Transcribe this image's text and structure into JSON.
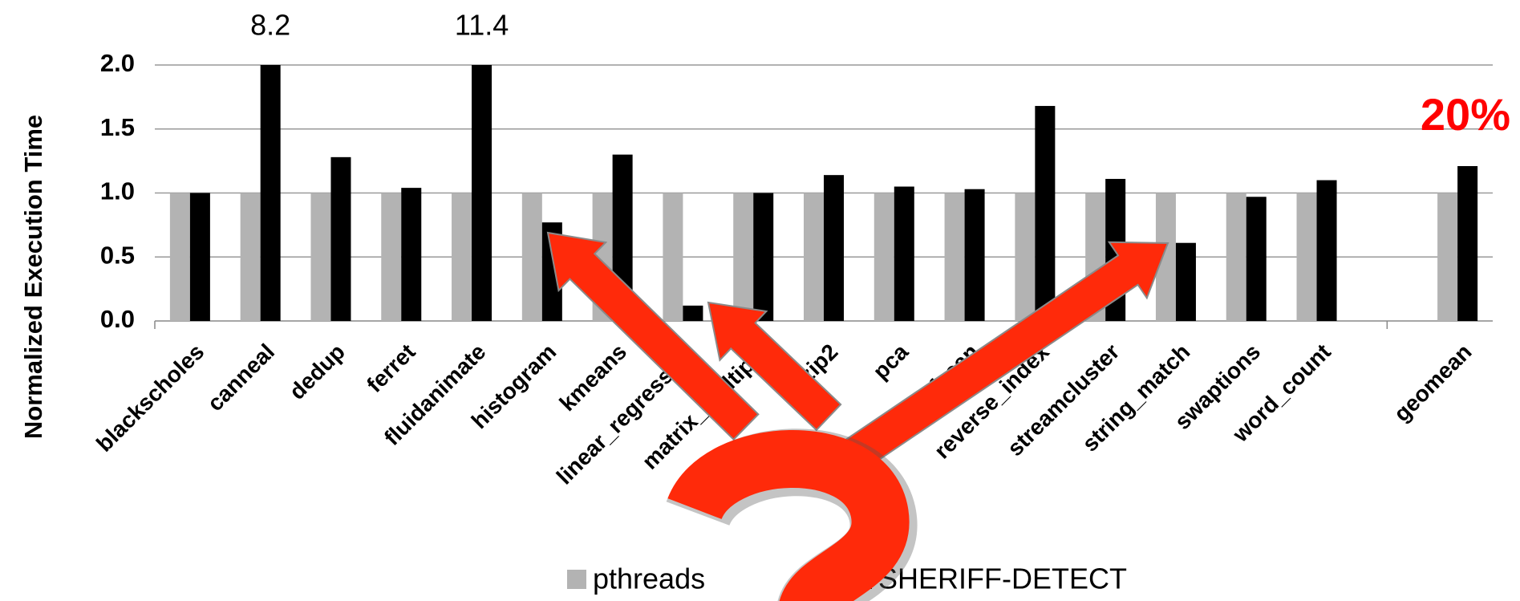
{
  "chart_data": {
    "type": "bar",
    "y_label": "Normalized Execution Time",
    "categories": [
      "blackscholes",
      "canneal",
      "dedup",
      "ferret",
      "fluidanimate",
      "histogram",
      "kmeans",
      "linear_regression",
      "matrix_multiply",
      "pbzip2",
      "pca",
      "pfscan",
      "reverse_index",
      "streamcluster",
      "string_match",
      "swaptions",
      "word_count",
      null,
      "geomean"
    ],
    "series": [
      {
        "name": "pthreads",
        "color": "#b3b3b3",
        "values": [
          1.0,
          1.0,
          1.0,
          1.0,
          1.0,
          1.0,
          1.0,
          1.0,
          1.0,
          1.0,
          1.0,
          1.0,
          1.0,
          1.0,
          1.0,
          1.0,
          1.0,
          null,
          1.0
        ]
      },
      {
        "name": "SHERIFF-DETECT",
        "color": "#000000",
        "values": [
          1.0,
          8.2,
          1.28,
          1.04,
          11.4,
          0.77,
          1.3,
          0.12,
          1.0,
          1.14,
          1.05,
          1.03,
          1.68,
          1.11,
          0.61,
          0.97,
          1.1,
          null,
          1.21
        ],
        "value_labels": [
          null,
          "8.2",
          null,
          null,
          "11.4",
          null,
          null,
          null,
          null,
          null,
          null,
          null,
          null,
          null,
          null,
          null,
          null,
          null,
          null
        ]
      }
    ],
    "ylim": [
      0,
      2.0
    ],
    "yticks": [
      {
        "value": 0,
        "label": "0.0"
      },
      {
        "value": 0.5,
        "label": "0.5"
      },
      {
        "value": 1.0,
        "label": "1.0"
      },
      {
        "value": 1.5,
        "label": "1.5"
      },
      {
        "value": 2.0,
        "label": "2.0"
      }
    ],
    "grid": true,
    "annotation": "20%",
    "annotation_color": "#ff0000"
  }
}
